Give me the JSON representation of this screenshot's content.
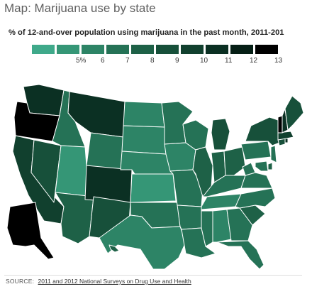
{
  "title": "Map: Marijuana use by state",
  "subtitle": "% of 12-and-over population using marijuana in the past month, 2011-201",
  "source": {
    "label": "SOURCE:",
    "link_text": "2011 and 2012 National Surveys on Drug Use and Health"
  },
  "legend": {
    "items": [
      {
        "label": "",
        "color": "#3fa98a"
      },
      {
        "label": "5%",
        "color": "#359676"
      },
      {
        "label": "6",
        "color": "#2d8466"
      },
      {
        "label": "7",
        "color": "#257256"
      },
      {
        "label": "8",
        "color": "#1e6147"
      },
      {
        "label": "9",
        "color": "#17503a"
      },
      {
        "label": "10",
        "color": "#11402e"
      },
      {
        "label": "11",
        "color": "#0b3023"
      },
      {
        "label": "12",
        "color": "#061f16"
      },
      {
        "label": "13",
        "color": "#000000"
      }
    ]
  },
  "map_data": {
    "type": "choropleth",
    "region": "United States",
    "measure": "% of 12-and-over population using marijuana in the past month",
    "states": [
      {
        "name": "Washington",
        "value": 10.5
      },
      {
        "name": "Oregon",
        "value": 13.2
      },
      {
        "name": "California",
        "value": 9.5
      },
      {
        "name": "Nevada",
        "value": 8.5
      },
      {
        "name": "Idaho",
        "value": 6.5
      },
      {
        "name": "Montana",
        "value": 10.5
      },
      {
        "name": "Wyoming",
        "value": 6.5
      },
      {
        "name": "Utah",
        "value": 5.0
      },
      {
        "name": "Arizona",
        "value": 7.5
      },
      {
        "name": "Colorado",
        "value": 10.5
      },
      {
        "name": "New Mexico",
        "value": 8.5
      },
      {
        "name": "North Dakota",
        "value": 5.5
      },
      {
        "name": "South Dakota",
        "value": 5.5
      },
      {
        "name": "Nebraska",
        "value": 6.0
      },
      {
        "name": "Kansas",
        "value": 5.0
      },
      {
        "name": "Oklahoma",
        "value": 7.0
      },
      {
        "name": "Texas",
        "value": 5.5
      },
      {
        "name": "Minnesota",
        "value": 7.0
      },
      {
        "name": "Iowa",
        "value": 6.0
      },
      {
        "name": "Missouri",
        "value": 6.5
      },
      {
        "name": "Arkansas",
        "value": 6.5
      },
      {
        "name": "Louisiana",
        "value": 6.5
      },
      {
        "name": "Wisconsin",
        "value": 7.0
      },
      {
        "name": "Illinois",
        "value": 7.5
      },
      {
        "name": "Michigan",
        "value": 9.0
      },
      {
        "name": "Indiana",
        "value": 7.5
      },
      {
        "name": "Ohio",
        "value": 8.0
      },
      {
        "name": "Kentucky",
        "value": 6.5
      },
      {
        "name": "Tennessee",
        "value": 6.0
      },
      {
        "name": "Mississippi",
        "value": 6.5
      },
      {
        "name": "Alabama",
        "value": 6.0
      },
      {
        "name": "Georgia",
        "value": 6.5
      },
      {
        "name": "Florida",
        "value": 7.0
      },
      {
        "name": "South Carolina",
        "value": 7.5
      },
      {
        "name": "North Carolina",
        "value": 7.0
      },
      {
        "name": "Virginia",
        "value": 6.5
      },
      {
        "name": "West Virginia",
        "value": 6.5
      },
      {
        "name": "Pennsylvania",
        "value": 7.0
      },
      {
        "name": "New York",
        "value": 8.5
      },
      {
        "name": "New Jersey",
        "value": 6.5
      },
      {
        "name": "Delaware",
        "value": 7.5
      },
      {
        "name": "Maryland",
        "value": 7.0
      },
      {
        "name": "Connecticut",
        "value": 8.5
      },
      {
        "name": "Rhode Island",
        "value": 11.0
      },
      {
        "name": "Massachusetts",
        "value": 10.0
      },
      {
        "name": "Vermont",
        "value": 13.0
      },
      {
        "name": "New Hampshire",
        "value": 10.5
      },
      {
        "name": "Maine",
        "value": 9.0
      },
      {
        "name": "Alaska",
        "value": 12.5
      },
      {
        "name": "Hawaii",
        "value": 7.5
      }
    ]
  }
}
